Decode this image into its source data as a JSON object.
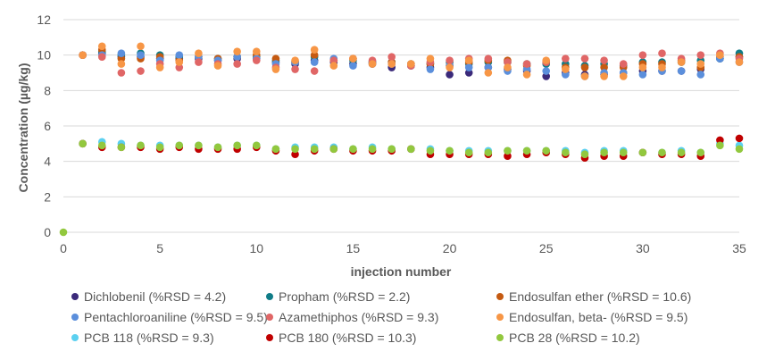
{
  "chart_data": {
    "type": "scatter",
    "title": "",
    "xlabel": "injection number",
    "ylabel": "Concentration (µg/kg)",
    "xlim": [
      0,
      35
    ],
    "ylim": [
      0,
      12
    ],
    "x_ticks": [
      0,
      5,
      10,
      15,
      20,
      25,
      30,
      35
    ],
    "y_ticks": [
      0,
      2,
      4,
      6,
      8,
      10,
      12
    ],
    "grid": "horizontal",
    "legend_position": "bottom",
    "series": [
      {
        "name": "Dichlobenil (%RSD = 4.2)",
        "color": "#3b2a7a",
        "x": [
          1,
          2,
          3,
          4,
          5,
          6,
          7,
          8,
          9,
          10,
          11,
          12,
          13,
          14,
          15,
          16,
          17,
          18,
          19,
          20,
          21,
          22,
          23,
          24,
          25,
          26,
          27,
          28,
          29,
          30,
          31,
          32,
          33,
          34,
          35
        ],
        "y": [
          10.0,
          10.1,
          9.9,
          9.9,
          9.8,
          9.8,
          9.8,
          9.7,
          9.8,
          9.8,
          9.6,
          9.5,
          9.7,
          9.6,
          9.5,
          9.5,
          9.3,
          9.4,
          9.3,
          8.9,
          9.0,
          9.3,
          9.2,
          9.1,
          8.8,
          9.0,
          8.9,
          8.9,
          9.0,
          9.1,
          9.1,
          9.1,
          9.2,
          9.8,
          9.9
        ]
      },
      {
        "name": "Propham (%RSD = 2.2)",
        "color": "#107c87",
        "x": [
          1,
          2,
          3,
          4,
          5,
          6,
          7,
          8,
          9,
          10,
          11,
          12,
          13,
          14,
          15,
          16,
          17,
          18,
          19,
          20,
          21,
          22,
          23,
          24,
          25,
          26,
          27,
          28,
          29,
          30,
          31,
          32,
          33,
          34,
          35
        ],
        "y": [
          10.0,
          10.2,
          10.0,
          10.1,
          10.0,
          9.9,
          9.9,
          9.8,
          9.9,
          9.9,
          9.7,
          9.6,
          9.9,
          9.7,
          9.7,
          9.6,
          9.6,
          9.5,
          9.5,
          9.6,
          9.5,
          9.6,
          9.6,
          9.5,
          9.5,
          9.5,
          9.4,
          9.5,
          9.4,
          9.6,
          9.6,
          9.6,
          9.7,
          9.8,
          10.1
        ]
      },
      {
        "name": "Endosulfan ether (%RSD = 10.6)",
        "color": "#c55a11",
        "x": [
          1,
          2,
          3,
          4,
          5,
          6,
          7,
          8,
          9,
          10,
          11,
          12,
          13,
          14,
          15,
          16,
          17,
          18,
          19,
          20,
          21,
          22,
          23,
          24,
          25,
          26,
          27,
          28,
          29,
          30,
          31,
          32,
          33,
          34,
          35
        ],
        "y": [
          10.0,
          10.3,
          9.8,
          9.8,
          9.9,
          9.7,
          9.9,
          9.8,
          9.9,
          10.0,
          9.8,
          9.6,
          10.0,
          9.7,
          9.8,
          9.6,
          9.6,
          9.5,
          9.5,
          9.4,
          9.6,
          9.7,
          9.7,
          9.4,
          9.6,
          9.3,
          9.3,
          9.3,
          9.3,
          9.5,
          9.5,
          9.7,
          9.3,
          9.9,
          9.9
        ]
      },
      {
        "name": "Pentachloroaniline (%RSD = 9.5)",
        "color": "#5b8fdc",
        "x": [
          1,
          2,
          3,
          4,
          5,
          6,
          7,
          8,
          9,
          10,
          11,
          12,
          13,
          14,
          15,
          16,
          17,
          18,
          19,
          20,
          21,
          22,
          23,
          24,
          25,
          26,
          27,
          28,
          29,
          30,
          31,
          32,
          33,
          34,
          35
        ],
        "y": [
          10.0,
          10.0,
          10.1,
          10.0,
          9.7,
          10.0,
          9.9,
          9.7,
          9.9,
          9.8,
          9.5,
          9.6,
          9.6,
          9.8,
          9.4,
          9.6,
          9.5,
          9.4,
          9.2,
          9.4,
          9.3,
          9.3,
          9.1,
          9.2,
          9.1,
          8.9,
          8.8,
          9.0,
          9.0,
          8.9,
          9.1,
          9.1,
          8.9,
          9.8,
          9.6
        ]
      },
      {
        "name": "Azamethiphos (%RSD = 9.3)",
        "color": "#e06666",
        "x": [
          1,
          2,
          3,
          4,
          5,
          6,
          7,
          8,
          9,
          10,
          11,
          12,
          13,
          14,
          15,
          16,
          17,
          18,
          19,
          20,
          21,
          22,
          23,
          24,
          25,
          26,
          27,
          28,
          29,
          30,
          31,
          32,
          33,
          34,
          35
        ],
        "y": [
          10.0,
          9.9,
          9.0,
          9.1,
          9.5,
          9.3,
          9.6,
          9.5,
          9.5,
          9.7,
          9.3,
          9.2,
          9.1,
          9.7,
          9.8,
          9.7,
          9.9,
          9.4,
          9.6,
          9.7,
          9.8,
          9.8,
          9.6,
          9.5,
          9.6,
          9.8,
          9.8,
          9.7,
          9.5,
          10.0,
          10.1,
          9.8,
          10.0,
          10.1,
          9.8
        ]
      },
      {
        "name": "Endosulfan, beta- (%RSD = 9.5)",
        "color": "#f79646",
        "x": [
          1,
          2,
          3,
          4,
          5,
          6,
          7,
          8,
          9,
          10,
          11,
          12,
          13,
          14,
          15,
          16,
          17,
          18,
          19,
          20,
          21,
          22,
          23,
          24,
          25,
          26,
          27,
          28,
          29,
          30,
          31,
          32,
          33,
          34,
          35
        ],
        "y": [
          10.0,
          10.5,
          9.5,
          10.5,
          9.3,
          9.6,
          10.1,
          9.4,
          10.2,
          10.2,
          9.2,
          9.7,
          10.3,
          9.4,
          9.8,
          9.5,
          9.5,
          9.5,
          9.8,
          9.3,
          9.7,
          9.0,
          9.3,
          8.9,
          9.7,
          9.2,
          8.8,
          8.8,
          8.8,
          9.3,
          9.3,
          9.6,
          9.5,
          10.0,
          9.6
        ]
      },
      {
        "name": "PCB 118 (%RSD = 9.3)",
        "color": "#5bd0f0",
        "x": [
          1,
          2,
          3,
          4,
          5,
          6,
          7,
          8,
          9,
          10,
          11,
          12,
          13,
          14,
          15,
          16,
          17,
          18,
          19,
          20,
          21,
          22,
          23,
          24,
          25,
          26,
          27,
          28,
          29,
          30,
          31,
          32,
          33,
          34,
          35
        ],
        "y": [
          5.0,
          5.1,
          5.0,
          4.9,
          4.9,
          4.9,
          4.9,
          4.8,
          4.9,
          4.9,
          4.7,
          4.8,
          4.8,
          4.8,
          4.7,
          4.8,
          4.7,
          4.7,
          4.7,
          4.6,
          4.6,
          4.6,
          4.6,
          4.6,
          4.6,
          4.6,
          4.5,
          4.6,
          4.6,
          4.5,
          4.5,
          4.6,
          4.5,
          5.0,
          4.9
        ]
      },
      {
        "name": "PCB 180 (%RSD = 10.3)",
        "color": "#c00000",
        "x": [
          1,
          2,
          3,
          4,
          5,
          6,
          7,
          8,
          9,
          10,
          11,
          12,
          13,
          14,
          15,
          16,
          17,
          18,
          19,
          20,
          21,
          22,
          23,
          24,
          25,
          26,
          27,
          28,
          29,
          30,
          31,
          32,
          33,
          34,
          35
        ],
        "y": [
          5.0,
          4.8,
          4.8,
          4.8,
          4.7,
          4.8,
          4.7,
          4.7,
          4.7,
          4.8,
          4.6,
          4.4,
          4.6,
          4.7,
          4.6,
          4.6,
          4.6,
          4.7,
          4.4,
          4.4,
          4.4,
          4.4,
          4.3,
          4.4,
          4.5,
          4.4,
          4.2,
          4.3,
          4.3,
          4.5,
          4.4,
          4.4,
          4.3,
          5.2,
          5.3
        ]
      },
      {
        "name": "PCB 28 (%RSD = 10.2)",
        "color": "#92c83e",
        "x": [
          0,
          1,
          2,
          3,
          4,
          5,
          6,
          7,
          8,
          9,
          10,
          11,
          12,
          13,
          14,
          15,
          16,
          17,
          18,
          19,
          20,
          21,
          22,
          23,
          24,
          25,
          26,
          27,
          28,
          29,
          30,
          31,
          32,
          33,
          34,
          35
        ],
        "y": [
          0.0,
          5.0,
          4.9,
          4.8,
          4.9,
          4.8,
          4.9,
          4.9,
          4.8,
          4.9,
          4.9,
          4.7,
          4.7,
          4.7,
          4.7,
          4.7,
          4.7,
          4.7,
          4.7,
          4.6,
          4.6,
          4.5,
          4.5,
          4.6,
          4.6,
          4.6,
          4.5,
          4.4,
          4.5,
          4.5,
          4.5,
          4.5,
          4.5,
          4.5,
          4.9,
          4.7
        ]
      }
    ]
  }
}
